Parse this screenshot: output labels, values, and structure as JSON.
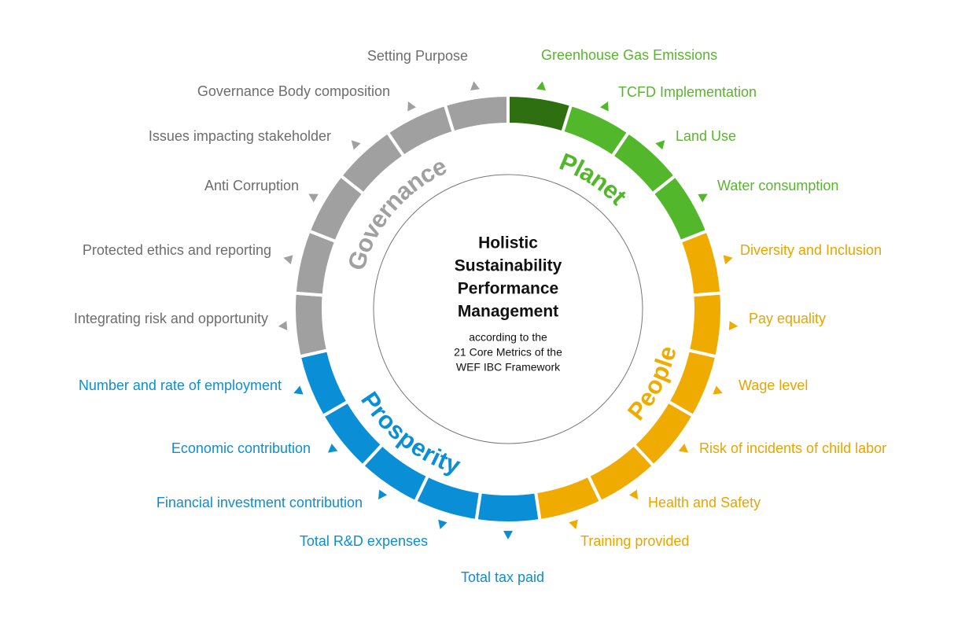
{
  "center": {
    "title_lines": [
      "Holistic",
      "Sustainability",
      "Performance",
      "Management"
    ],
    "subtitle_lines": [
      "according to the",
      "21 Core Metrics of the",
      "WEF IBC Framework"
    ]
  },
  "groups": [
    {
      "name": "Planet",
      "color": "#52b72a",
      "label_color": "#5ab52e",
      "items": [
        "Greenhouse Gas Emissions",
        "TCFD Implementation",
        "Land Use",
        "Water consumption"
      ]
    },
    {
      "name": "People",
      "color": "#f0ab00",
      "label_color": "#e8a400",
      "items": [
        "Diversity and Inclusion",
        "Pay equality",
        "Wage level",
        "Risk of incidents of child labor",
        "Health and Safety",
        "Training provided"
      ]
    },
    {
      "name": "Prosperity",
      "color": "#0a8fd6",
      "label_color": "#0f8dd0",
      "items": [
        "Total tax paid",
        "Total R&D expenses",
        "Financial investment contribution",
        "Economic contribution",
        "Number and rate of employment"
      ]
    },
    {
      "name": "Governance",
      "color": "#a0a0a0",
      "label_color": "#6d6d6d",
      "items": [
        "Integrating risk and opportunity",
        "Protected ethics and reporting",
        "Anti Corruption",
        "Issues impacting stakeholder",
        "Governance Body composition",
        "Setting Purpose"
      ]
    }
  ]
}
